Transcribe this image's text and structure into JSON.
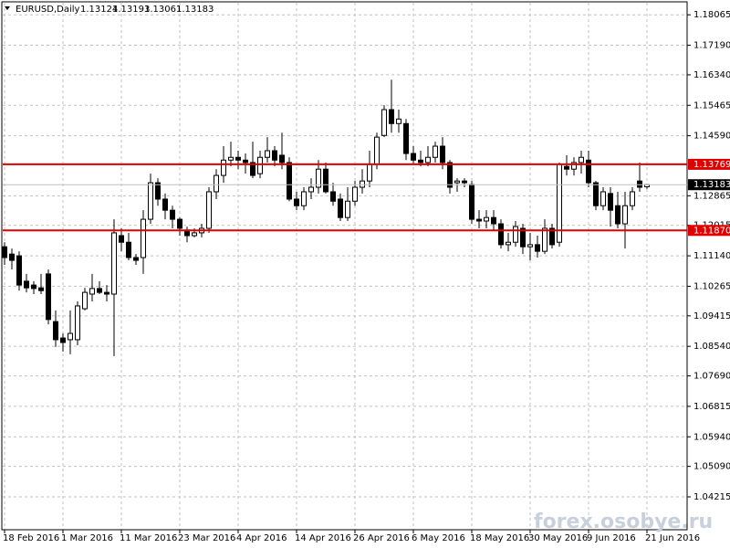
{
  "chart_data": {
    "type": "candlestick",
    "symbol": "EURUSD,Daily",
    "watermark": "forex.osobye.ru",
    "categories": [
      "18 Feb 2016",
      null,
      null,
      null,
      null,
      null,
      null,
      null,
      "1 Mar 2016",
      null,
      null,
      null,
      null,
      null,
      null,
      null,
      "11 Mar 2016",
      null,
      null,
      null,
      null,
      null,
      null,
      null,
      "23 Mar 2016",
      null,
      null,
      null,
      null,
      null,
      null,
      null,
      "4 Apr 2016",
      null,
      null,
      null,
      null,
      null,
      null,
      null,
      "14 Apr 2016",
      null,
      null,
      null,
      null,
      null,
      null,
      null,
      "26 Apr 2016",
      null,
      null,
      null,
      null,
      null,
      null,
      null,
      "6 May 2016",
      null,
      null,
      null,
      null,
      null,
      null,
      null,
      "18 May 2016",
      null,
      null,
      null,
      null,
      null,
      null,
      null,
      "30 May 2016",
      null,
      null,
      null,
      null,
      null,
      null,
      null,
      "9 Jun 2016",
      null,
      null,
      null,
      null,
      null,
      null,
      null,
      "21 Jun 2016"
    ],
    "open": [
      1.114,
      1.1119,
      1.1114,
      1.1041,
      1.103,
      1.1022,
      1.1062,
      1.0925,
      1.0878,
      1.0873,
      1.0873,
      1.0962,
      1.1004,
      1.102,
      1.1009,
      1.1004,
      1.1172,
      1.1153,
      1.1109,
      1.1109,
      1.1219,
      1.1324,
      1.1277,
      1.1245,
      1.1219,
      1.1188,
      1.1172,
      1.118,
      1.1193,
      1.1298,
      1.1345,
      1.1389,
      1.1397,
      1.1389,
      1.1382,
      1.135,
      1.1397,
      1.1416,
      1.1403,
      1.1382,
      1.1277,
      1.1258,
      1.1298,
      1.1311,
      1.1363,
      1.1298,
      1.1277,
      1.1224,
      1.1271,
      1.1311,
      1.1329,
      1.1377,
      1.146,
      1.1534,
      1.1494,
      1.1494,
      1.1408,
      1.1389,
      1.1382,
      1.1397,
      1.1429,
      1.1382,
      1.1324,
      1.1329,
      1.1319,
      1.1219,
      1.1214,
      1.1224,
      1.1206,
      1.1146,
      1.1153,
      1.1193,
      1.114,
      1.1146,
      1.1127,
      1.1193,
      1.1153,
      1.1371,
      1.1363,
      1.1382,
      1.1389,
      1.1324,
      1.1258,
      1.1293,
      1.1258,
      1.1206,
      1.1258,
      1.1329,
      1.13124
    ],
    "high": [
      1.1153,
      1.1135,
      1.1127,
      1.1062,
      1.1041,
      1.1062,
      1.1075,
      1.0957,
      1.0891,
      1.0957,
      1.0983,
      1.1022,
      1.1062,
      1.1041,
      1.103,
      1.1219,
      1.1193,
      1.118,
      1.1119,
      1.1245,
      1.135,
      1.1337,
      1.1293,
      1.1258,
      1.1224,
      1.1198,
      1.1193,
      1.1206,
      1.1311,
      1.1363,
      1.1429,
      1.1442,
      1.1416,
      1.1408,
      1.1442,
      1.1416,
      1.1455,
      1.1429,
      1.1468,
      1.1397,
      1.1298,
      1.1311,
      1.1337,
      1.1389,
      1.1382,
      1.1324,
      1.1293,
      1.1311,
      1.1329,
      1.1363,
      1.1416,
      1.1468,
      1.1547,
      1.162,
      1.1534,
      1.1507,
      1.1429,
      1.1416,
      1.1429,
      1.1442,
      1.1455,
      1.1389,
      1.1337,
      1.1337,
      1.1329,
      1.1245,
      1.1245,
      1.1245,
      1.1219,
      1.118,
      1.1214,
      1.1206,
      1.118,
      1.1172,
      1.1219,
      1.1206,
      1.1382,
      1.1403,
      1.1397,
      1.1416,
      1.1416,
      1.1329,
      1.1311,
      1.1311,
      1.1298,
      1.1298,
      1.1311,
      1.1382,
      1.13193
    ],
    "low": [
      1.1088,
      1.1075,
      1.1014,
      1.1009,
      1.1004,
      1.1004,
      1.0917,
      1.0852,
      1.0839,
      1.0831,
      1.0857,
      1.0957,
      1.0983,
      1.1004,
      1.0983,
      1.0826,
      1.1127,
      1.1101,
      1.1088,
      1.1062,
      1.1206,
      1.1258,
      1.1219,
      1.1193,
      1.1172,
      1.1153,
      1.1167,
      1.1167,
      1.118,
      1.1277,
      1.1324,
      1.1371,
      1.1363,
      1.135,
      1.1337,
      1.1337,
      1.1382,
      1.1371,
      1.1363,
      1.1271,
      1.1245,
      1.1245,
      1.1277,
      1.1293,
      1.1293,
      1.1258,
      1.1214,
      1.1214,
      1.1258,
      1.1293,
      1.1311,
      1.1363,
      1.1455,
      1.1468,
      1.1468,
      1.1389,
      1.1377,
      1.1371,
      1.1371,
      1.1382,
      1.1363,
      1.1293,
      1.1298,
      1.1311,
      1.1206,
      1.1193,
      1.1193,
      1.1188,
      1.1135,
      1.1127,
      1.114,
      1.1119,
      1.1101,
      1.1109,
      1.1119,
      1.1135,
      1.114,
      1.1345,
      1.1345,
      1.135,
      1.1311,
      1.1245,
      1.1245,
      1.1198,
      1.1193,
      1.1135,
      1.1245,
      1.1298,
      1.13061
    ],
    "close": [
      1.1109,
      1.1101,
      1.103,
      1.1022,
      1.102,
      1.1014,
      1.0931,
      1.0873,
      1.0865,
      1.0891,
      1.097,
      1.1009,
      1.102,
      1.1009,
      1.1004,
      1.118,
      1.1153,
      1.1109,
      1.1101,
      1.1219,
      1.1324,
      1.1277,
      1.1245,
      1.1219,
      1.1193,
      1.1172,
      1.118,
      1.1193,
      1.1298,
      1.1345,
      1.1389,
      1.1397,
      1.1389,
      1.1382,
      1.1345,
      1.1397,
      1.1416,
      1.1389,
      1.1382,
      1.1277,
      1.1258,
      1.1298,
      1.1311,
      1.1363,
      1.1298,
      1.1271,
      1.1224,
      1.1271,
      1.1311,
      1.1329,
      1.1377,
      1.1455,
      1.1534,
      1.1494,
      1.1507,
      1.1408,
      1.1389,
      1.1382,
      1.1397,
      1.1429,
      1.1382,
      1.1311,
      1.1329,
      1.1324,
      1.1219,
      1.1214,
      1.1224,
      1.1206,
      1.1146,
      1.1153,
      1.1198,
      1.114,
      1.1146,
      1.1127,
      1.1193,
      1.1146,
      1.1377,
      1.1363,
      1.1382,
      1.1397,
      1.1324,
      1.1258,
      1.1298,
      1.1245,
      1.1206,
      1.1258,
      1.1298,
      1.1311,
      1.13183
    ],
    "hlines": [
      {
        "value": 1.13769,
        "color": "#e00000"
      },
      {
        "value": 1.1187,
        "label": "1.11870",
        "color": "#e00000"
      }
    ],
    "ylim": [
      1.0327,
      1.1849
    ],
    "yticks": [
      1.18065,
      {
        "value": 1.1719,
        "label": "1.17190"
      },
      {
        "value": 1.1634,
        "label": "1.16340"
      },
      1.15465,
      {
        "value": 1.1459,
        "label": "1.14590"
      },
      1.12865,
      1.12015,
      {
        "value": 1.1114,
        "label": "1.11140"
      },
      1.10265,
      1.09415,
      {
        "value": 1.0854,
        "label": "1.08540"
      },
      {
        "value": 1.0769,
        "label": "1.07690"
      },
      1.06815,
      {
        "value": 1.0594,
        "label": "1.05940"
      },
      {
        "value": 1.0509,
        "label": "1.05090"
      },
      1.04215
    ],
    "grid": true
  }
}
